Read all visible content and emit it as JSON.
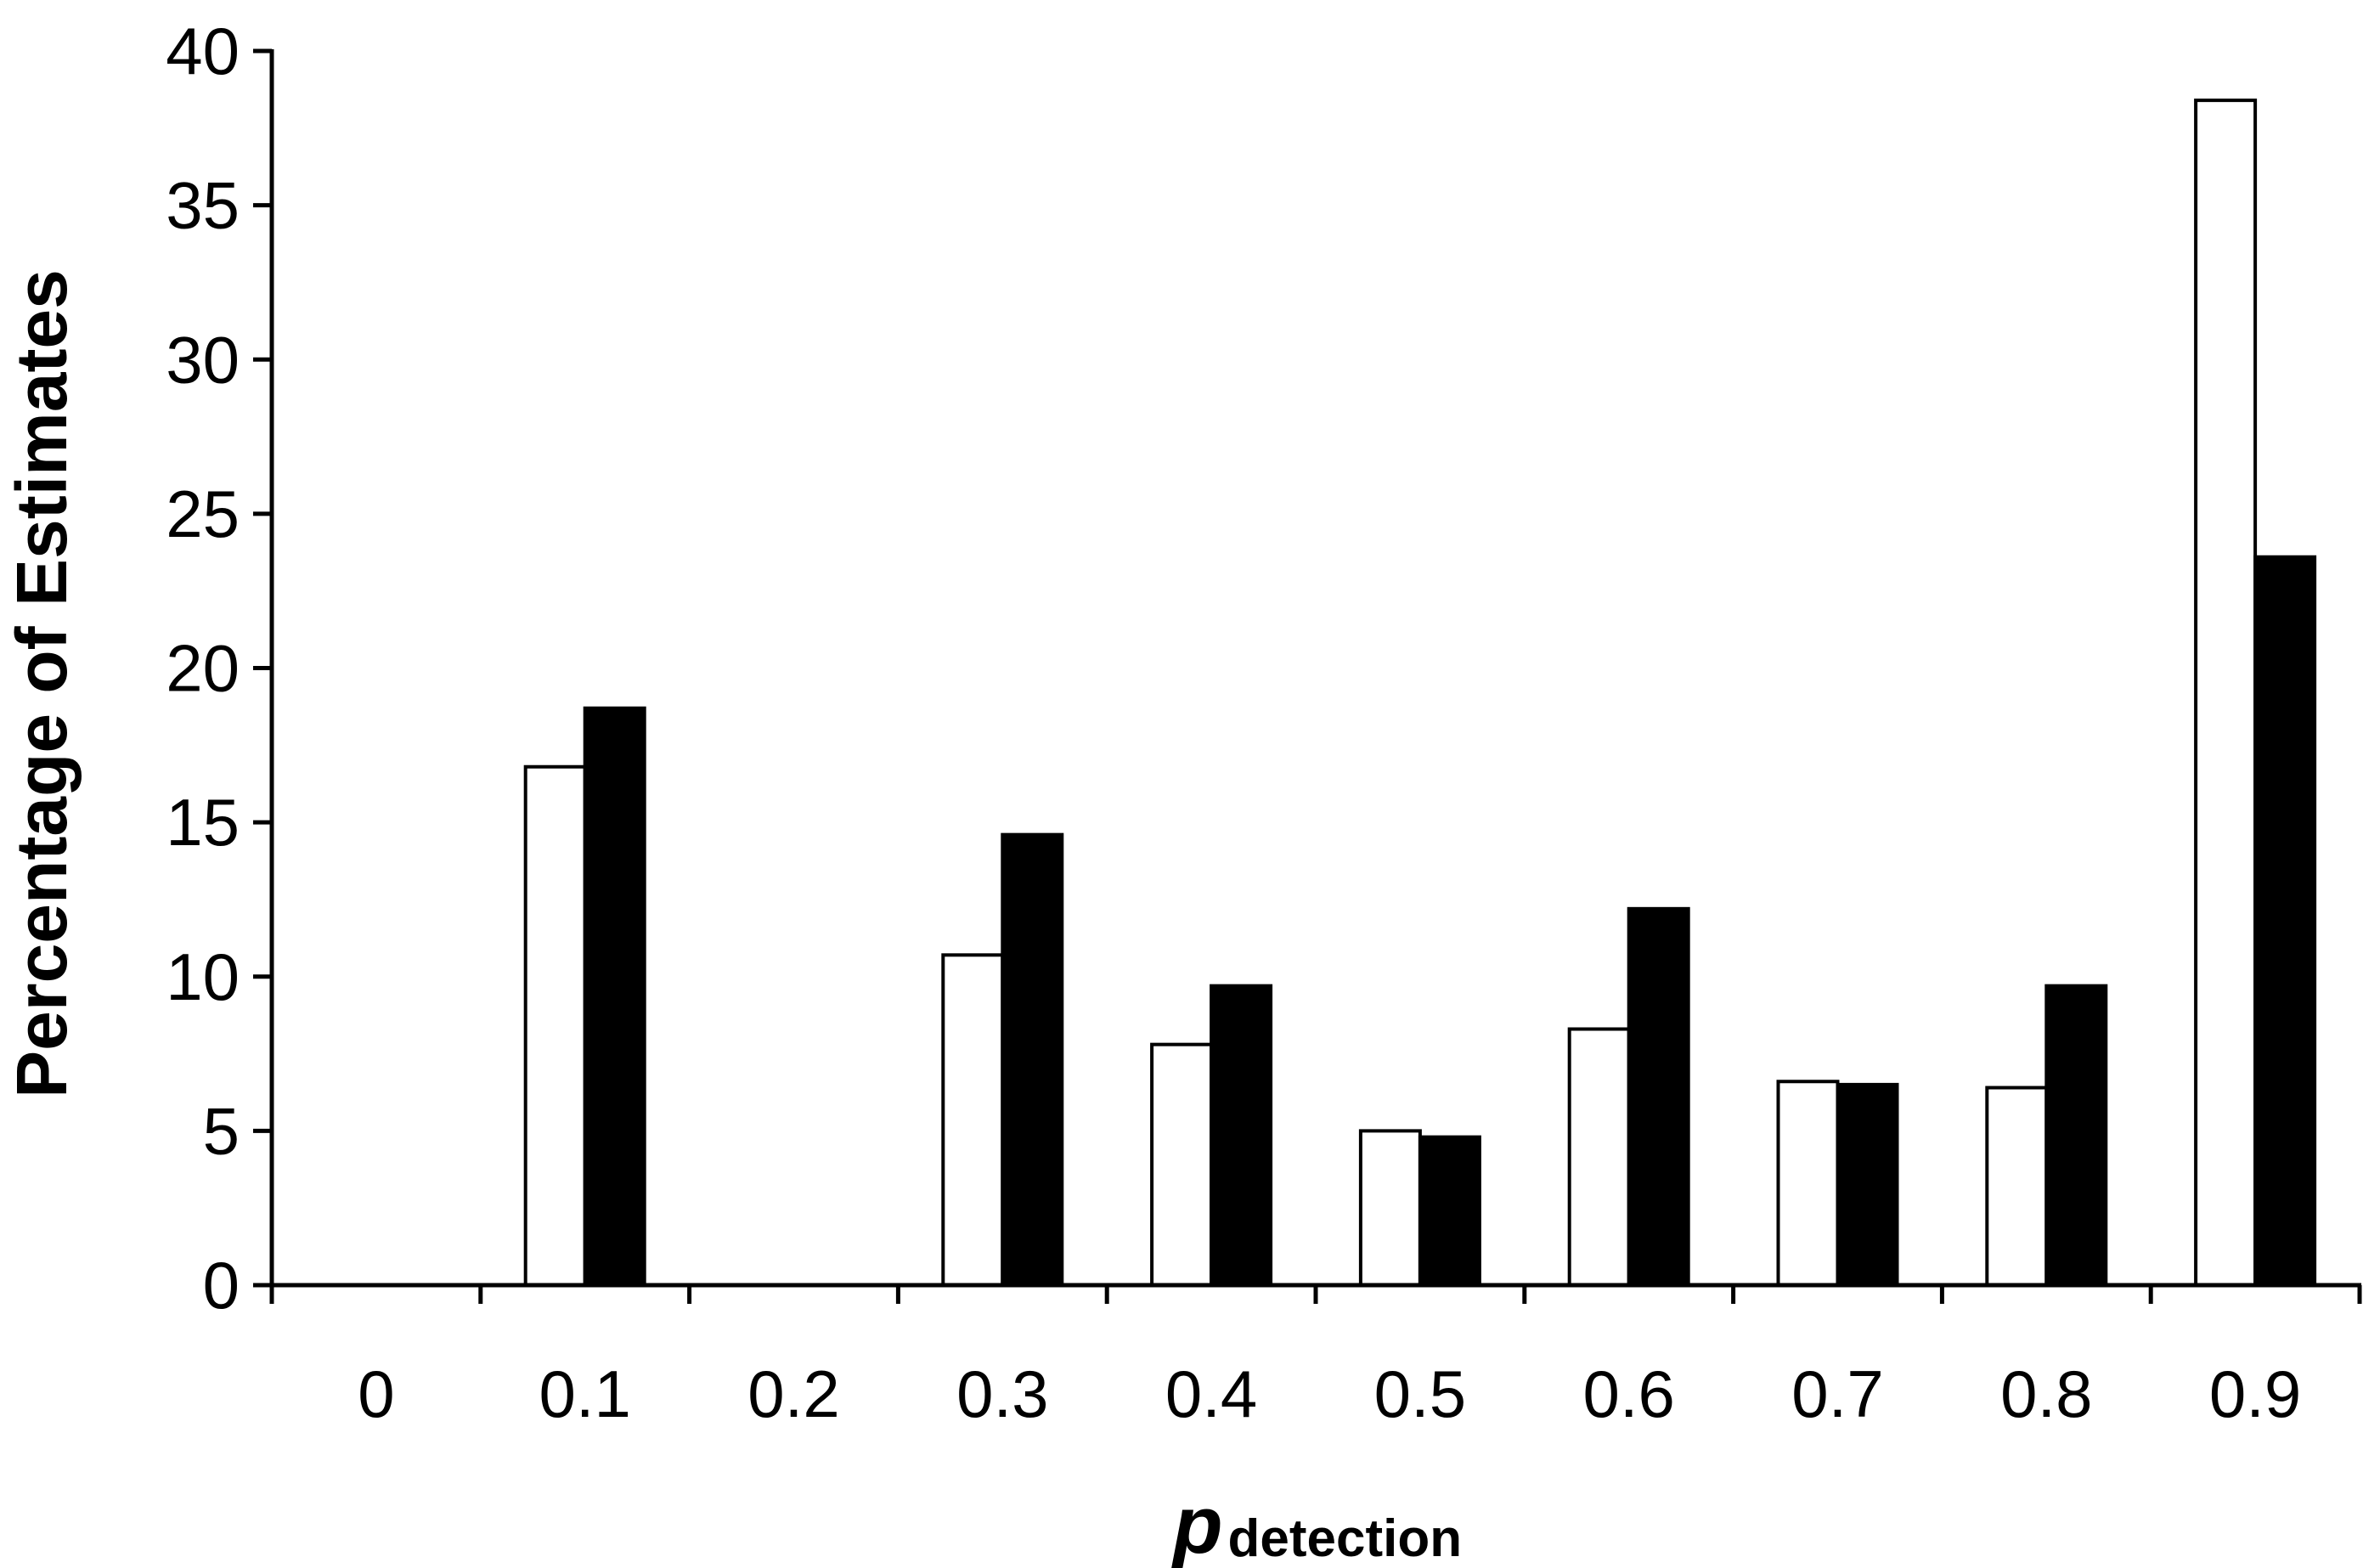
{
  "chart_data": {
    "type": "bar",
    "categories": [
      "0",
      "0.1",
      "0.2",
      "0.3",
      "0.4",
      "0.5",
      "0.6",
      "0.7",
      "0.8",
      "0.9"
    ],
    "series": [
      {
        "values": [
          0,
          16.8,
          0,
          10.7,
          7.8,
          5.0,
          8.3,
          6.6,
          6.4,
          38.4
        ],
        "fill": "#ffffff",
        "stroke": "#000000"
      },
      {
        "values": [
          0,
          18.7,
          0,
          14.6,
          9.7,
          4.8,
          12.2,
          6.5,
          9.7,
          23.6
        ],
        "fill": "#000000",
        "stroke": "#000000"
      }
    ],
    "ylim": [
      0,
      40
    ],
    "yticks": [
      0,
      5,
      10,
      15,
      20,
      25,
      30,
      35,
      40
    ],
    "ylabel": "Percentage of Estimates",
    "xlabel": {
      "main": "p",
      "sub": "detection"
    },
    "grid": false,
    "legend": "none"
  }
}
